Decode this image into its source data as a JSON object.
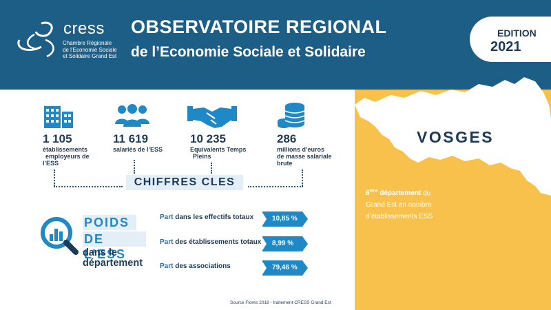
{
  "header": {
    "title": "OBSERVATOIRE REGIONAL",
    "subtitle": "de l’Economie Sociale et Solidaire",
    "edition_label": "EDITION",
    "edition_year": "2021"
  },
  "logo": {
    "name": "cress",
    "subtitle_lines": [
      "Chambre Régionale",
      "de l’Economie Sociale",
      "et Solidaire Grand Est"
    ]
  },
  "stats": [
    {
      "icon": "buildings-icon",
      "value": "1 105",
      "label_lines": [
        "établissements",
        "employeurs de",
        "l’ESS"
      ]
    },
    {
      "icon": "people-icon",
      "value": "11 619",
      "label_lines": [
        "salariés de l’ESS"
      ]
    },
    {
      "icon": "handshake-icon",
      "value": "10 235",
      "label_lines": [
        "Equivalents Temps",
        "Pleins"
      ]
    },
    {
      "icon": "coins-icon",
      "value": "286",
      "label_lines": [
        "millions d’euros",
        "de masse salariale",
        "brute"
      ]
    }
  ],
  "chiffres_cles": "CHIFFRES CLES",
  "poids": {
    "line1": "POIDS",
    "line2": "DE L’ESS",
    "line3": "dans le",
    "line4": "département",
    "icon": "magnifier-chart-icon"
  },
  "parts": [
    {
      "part": "Part",
      "rest": " dans les effectifs totaux",
      "value": "10,85 %"
    },
    {
      "part": "Part",
      "rest": " des établissements totaux",
      "value": "8,99 %"
    },
    {
      "part": "Part",
      "rest": " des associations",
      "value": "79,46  %"
    }
  ],
  "department": {
    "name": "VOSGES",
    "rank_number": "6",
    "rank_suffix": "ème",
    "rank_word": " département",
    "rank_rest_1": " du",
    "rank_rest_2": "Grand Est  en nombre",
    "rank_rest_3": "d’établissements ESS",
    "map_icon": "vosges-map-shape"
  },
  "colors": {
    "header_blue": "#1d5e86",
    "dark_navy": "#1d3a56",
    "accent_blue": "#1f89c8",
    "yellow": "#f8c14b",
    "light_bg": "#e4eef6"
  },
  "source": "Source Flores 2018 - traitement CRESS Grand Est"
}
